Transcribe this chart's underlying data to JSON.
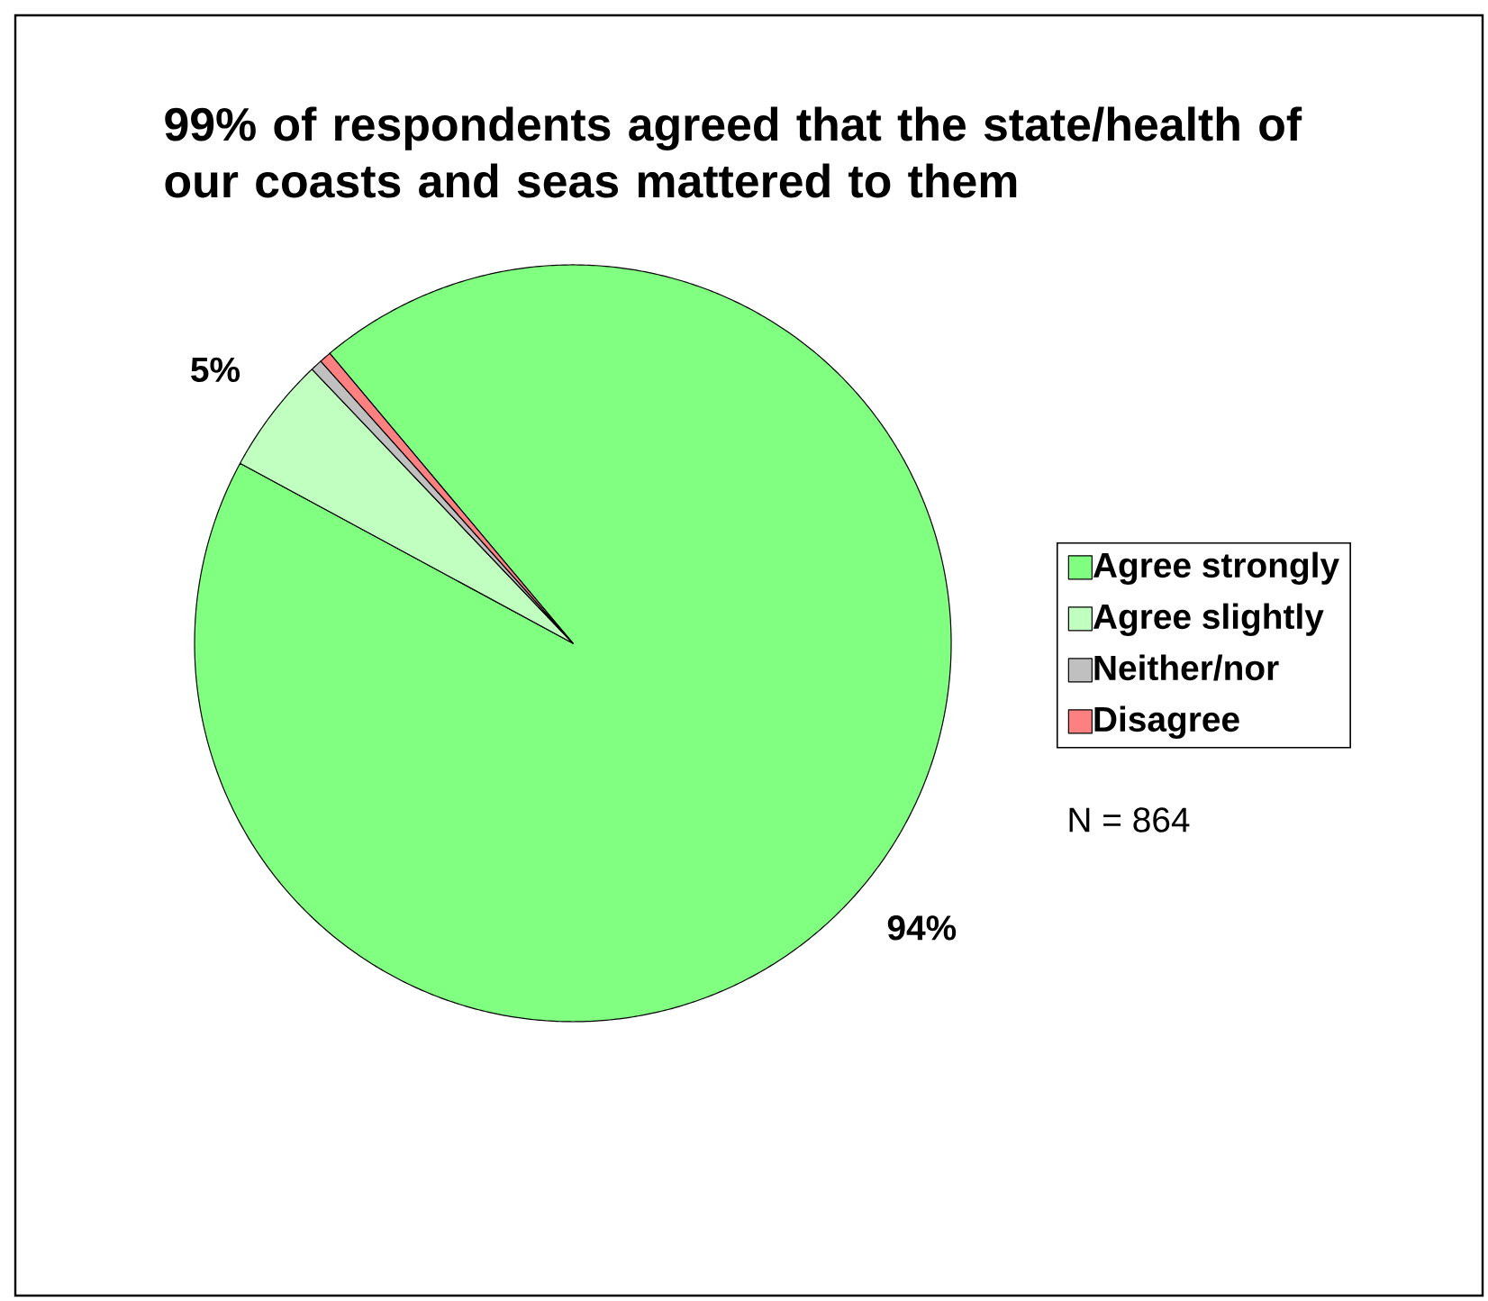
{
  "chart_data": {
    "type": "pie",
    "title": "99% of respondents agreed that the state/health of our coasts and seas mattered to them",
    "categories": [
      "Agree strongly",
      "Agree slightly",
      "Neither/nor",
      "Disagree"
    ],
    "values": [
      94,
      5,
      0.5,
      0.5
    ],
    "colors": [
      "#80ff80",
      "#c0ffc0",
      "#c0c0c0",
      "#ff8080"
    ],
    "value_labels": [
      "94%",
      "5%",
      null,
      null
    ],
    "legend": "right",
    "annotations": [
      "N = 864"
    ]
  }
}
